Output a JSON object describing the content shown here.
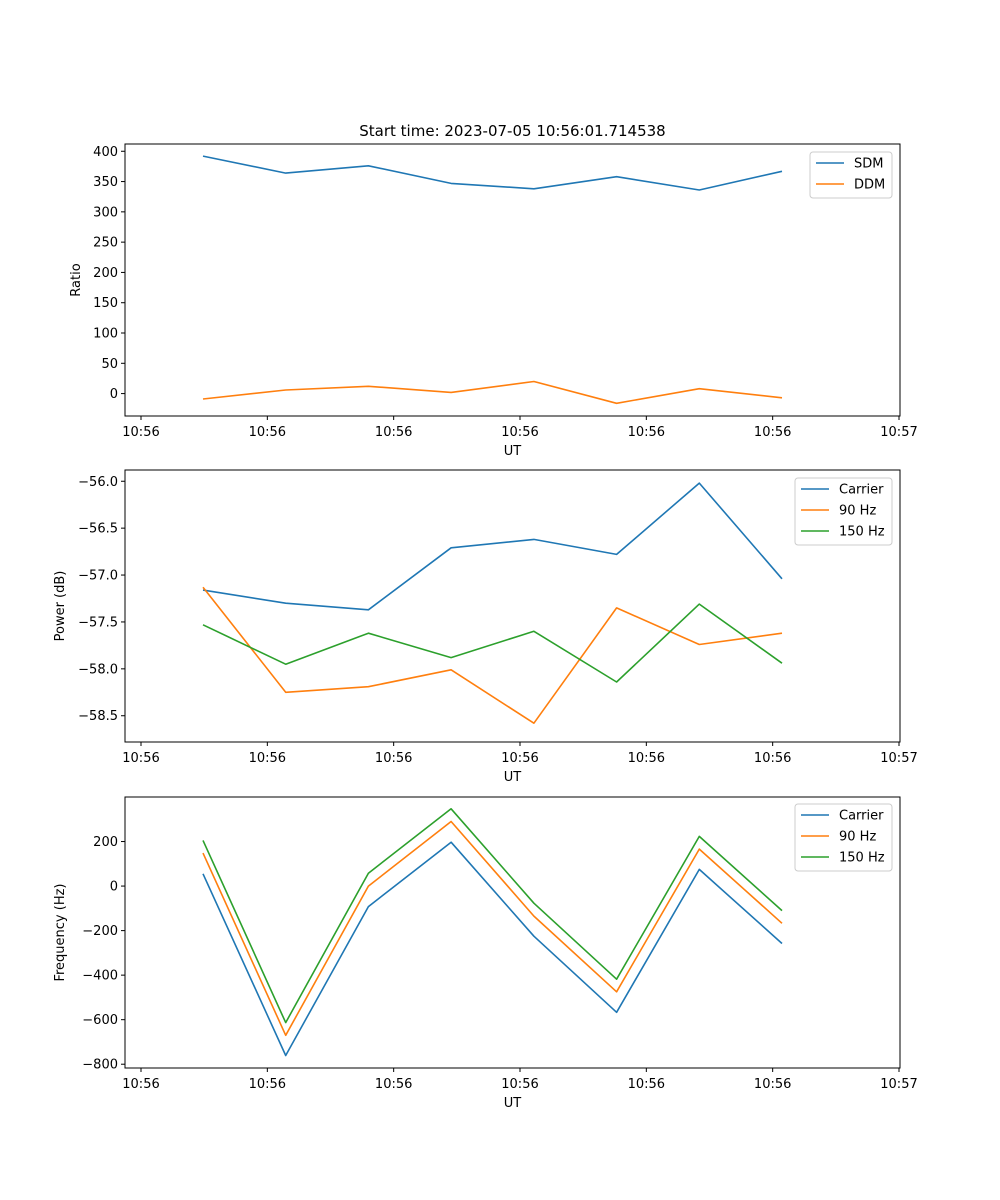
{
  "chart_data": [
    {
      "type": "line",
      "title": "Start time: 2023-07-05 10:56:01.714538",
      "xlabel": "UT",
      "ylabel": "Ratio",
      "xticks": [
        "10:56",
        "10:56",
        "10:56",
        "10:56",
        "10:56",
        "10:56",
        "10:56"
      ],
      "xticks_last": "10:57",
      "ylim": [
        -37,
        412
      ],
      "yticks": [
        0,
        50,
        100,
        150,
        200,
        250,
        300,
        350,
        400
      ],
      "ytick_labels": [
        "0",
        "50",
        "100",
        "150",
        "200",
        "250",
        "300",
        "350",
        "400"
      ],
      "legend": "top-right",
      "series": [
        {
          "name": "SDM",
          "color": "#1f77b4",
          "values": [
            392,
            364,
            376,
            347,
            338,
            358,
            336,
            367
          ]
        },
        {
          "name": "DDM",
          "color": "#ff7f0e",
          "values": [
            -9,
            6,
            12,
            2,
            20,
            -16,
            8,
            -7
          ]
        }
      ]
    },
    {
      "type": "line",
      "title": "",
      "xlabel": "UT",
      "ylabel": "Power (dB)",
      "xticks": [
        "10:56",
        "10:56",
        "10:56",
        "10:56",
        "10:56",
        "10:56",
        "10:56"
      ],
      "xticks_last": "10:57",
      "ylim": [
        -58.78,
        -55.88
      ],
      "yticks": [
        -58.5,
        -58.0,
        -57.5,
        -57.0,
        -56.5,
        -56.0
      ],
      "ytick_labels": [
        "−58.5",
        "−58.0",
        "−57.5",
        "−57.0",
        "−56.5",
        "−56.0"
      ],
      "legend": "top-right",
      "series": [
        {
          "name": "Carrier",
          "color": "#1f77b4",
          "values": [
            -57.16,
            -57.3,
            -57.37,
            -56.71,
            -56.62,
            -56.78,
            -56.02,
            -57.04
          ]
        },
        {
          "name": "90 Hz",
          "color": "#ff7f0e",
          "values": [
            -57.13,
            -58.25,
            -58.19,
            -58.01,
            -58.58,
            -57.35,
            -57.74,
            -57.62
          ]
        },
        {
          "name": "150 Hz",
          "color": "#2ca02c",
          "values": [
            -57.53,
            -57.95,
            -57.62,
            -57.88,
            -57.6,
            -58.14,
            -57.31,
            -57.94
          ]
        }
      ]
    },
    {
      "type": "line",
      "title": "",
      "xlabel": "UT",
      "ylabel": "Frequency (Hz)",
      "xticks": [
        "10:56",
        "10:56",
        "10:56",
        "10:56",
        "10:56",
        "10:56",
        "10:56"
      ],
      "xticks_last": "10:57",
      "ylim": [
        -817,
        400
      ],
      "yticks": [
        -800,
        -600,
        -400,
        -200,
        0,
        200
      ],
      "ytick_labels": [
        "−800",
        "−600",
        "−400",
        "−200",
        "0",
        "200"
      ],
      "legend": "top-right",
      "series": [
        {
          "name": "Carrier",
          "color": "#1f77b4",
          "values": [
            55,
            -761,
            -92,
            197,
            -225,
            -567,
            75,
            -258
          ]
        },
        {
          "name": "90 Hz",
          "color": "#ff7f0e",
          "values": [
            148,
            -670,
            0,
            290,
            -135,
            -475,
            166,
            -167
          ]
        },
        {
          "name": "150 Hz",
          "color": "#2ca02c",
          "values": [
            205,
            -613,
            58,
            347,
            -77,
            -418,
            223,
            -110
          ]
        }
      ]
    }
  ]
}
